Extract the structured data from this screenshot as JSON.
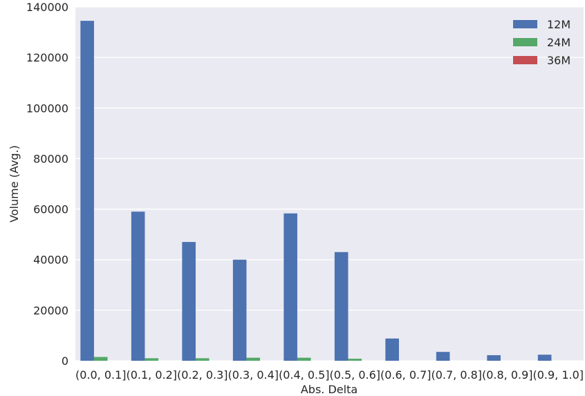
{
  "chart_data": {
    "type": "bar",
    "title": "",
    "xlabel": "Abs. Delta",
    "ylabel": "Volume (Avg.)",
    "categories": [
      "(0.0, 0.1]",
      "(0.1, 0.2]",
      "(0.2, 0.3]",
      "(0.3, 0.4]",
      "(0.4, 0.5]",
      "(0.5, 0.6]",
      "(0.6, 0.7]",
      "(0.7, 0.8]",
      "(0.8, 0.9]",
      "(0.9, 1.0]"
    ],
    "series": [
      {
        "name": "12M",
        "color": "#4c72b0",
        "values": [
          134500,
          59000,
          47000,
          40000,
          58300,
          43000,
          8800,
          3500,
          2200,
          2400
        ]
      },
      {
        "name": "24M",
        "color": "#55a868",
        "values": [
          1500,
          1000,
          1000,
          1200,
          1200,
          800,
          0,
          0,
          0,
          0
        ]
      },
      {
        "name": "36M",
        "color": "#c44e52",
        "values": [
          0,
          0,
          0,
          0,
          0,
          0,
          0,
          0,
          0,
          0
        ]
      }
    ],
    "ylim": [
      0,
      140000
    ],
    "yticks": [
      "0",
      "20000",
      "40000",
      "60000",
      "80000",
      "100000",
      "120000",
      "140000"
    ],
    "grid": true,
    "legend_position": "top-right",
    "background": "#eaeaf2"
  }
}
